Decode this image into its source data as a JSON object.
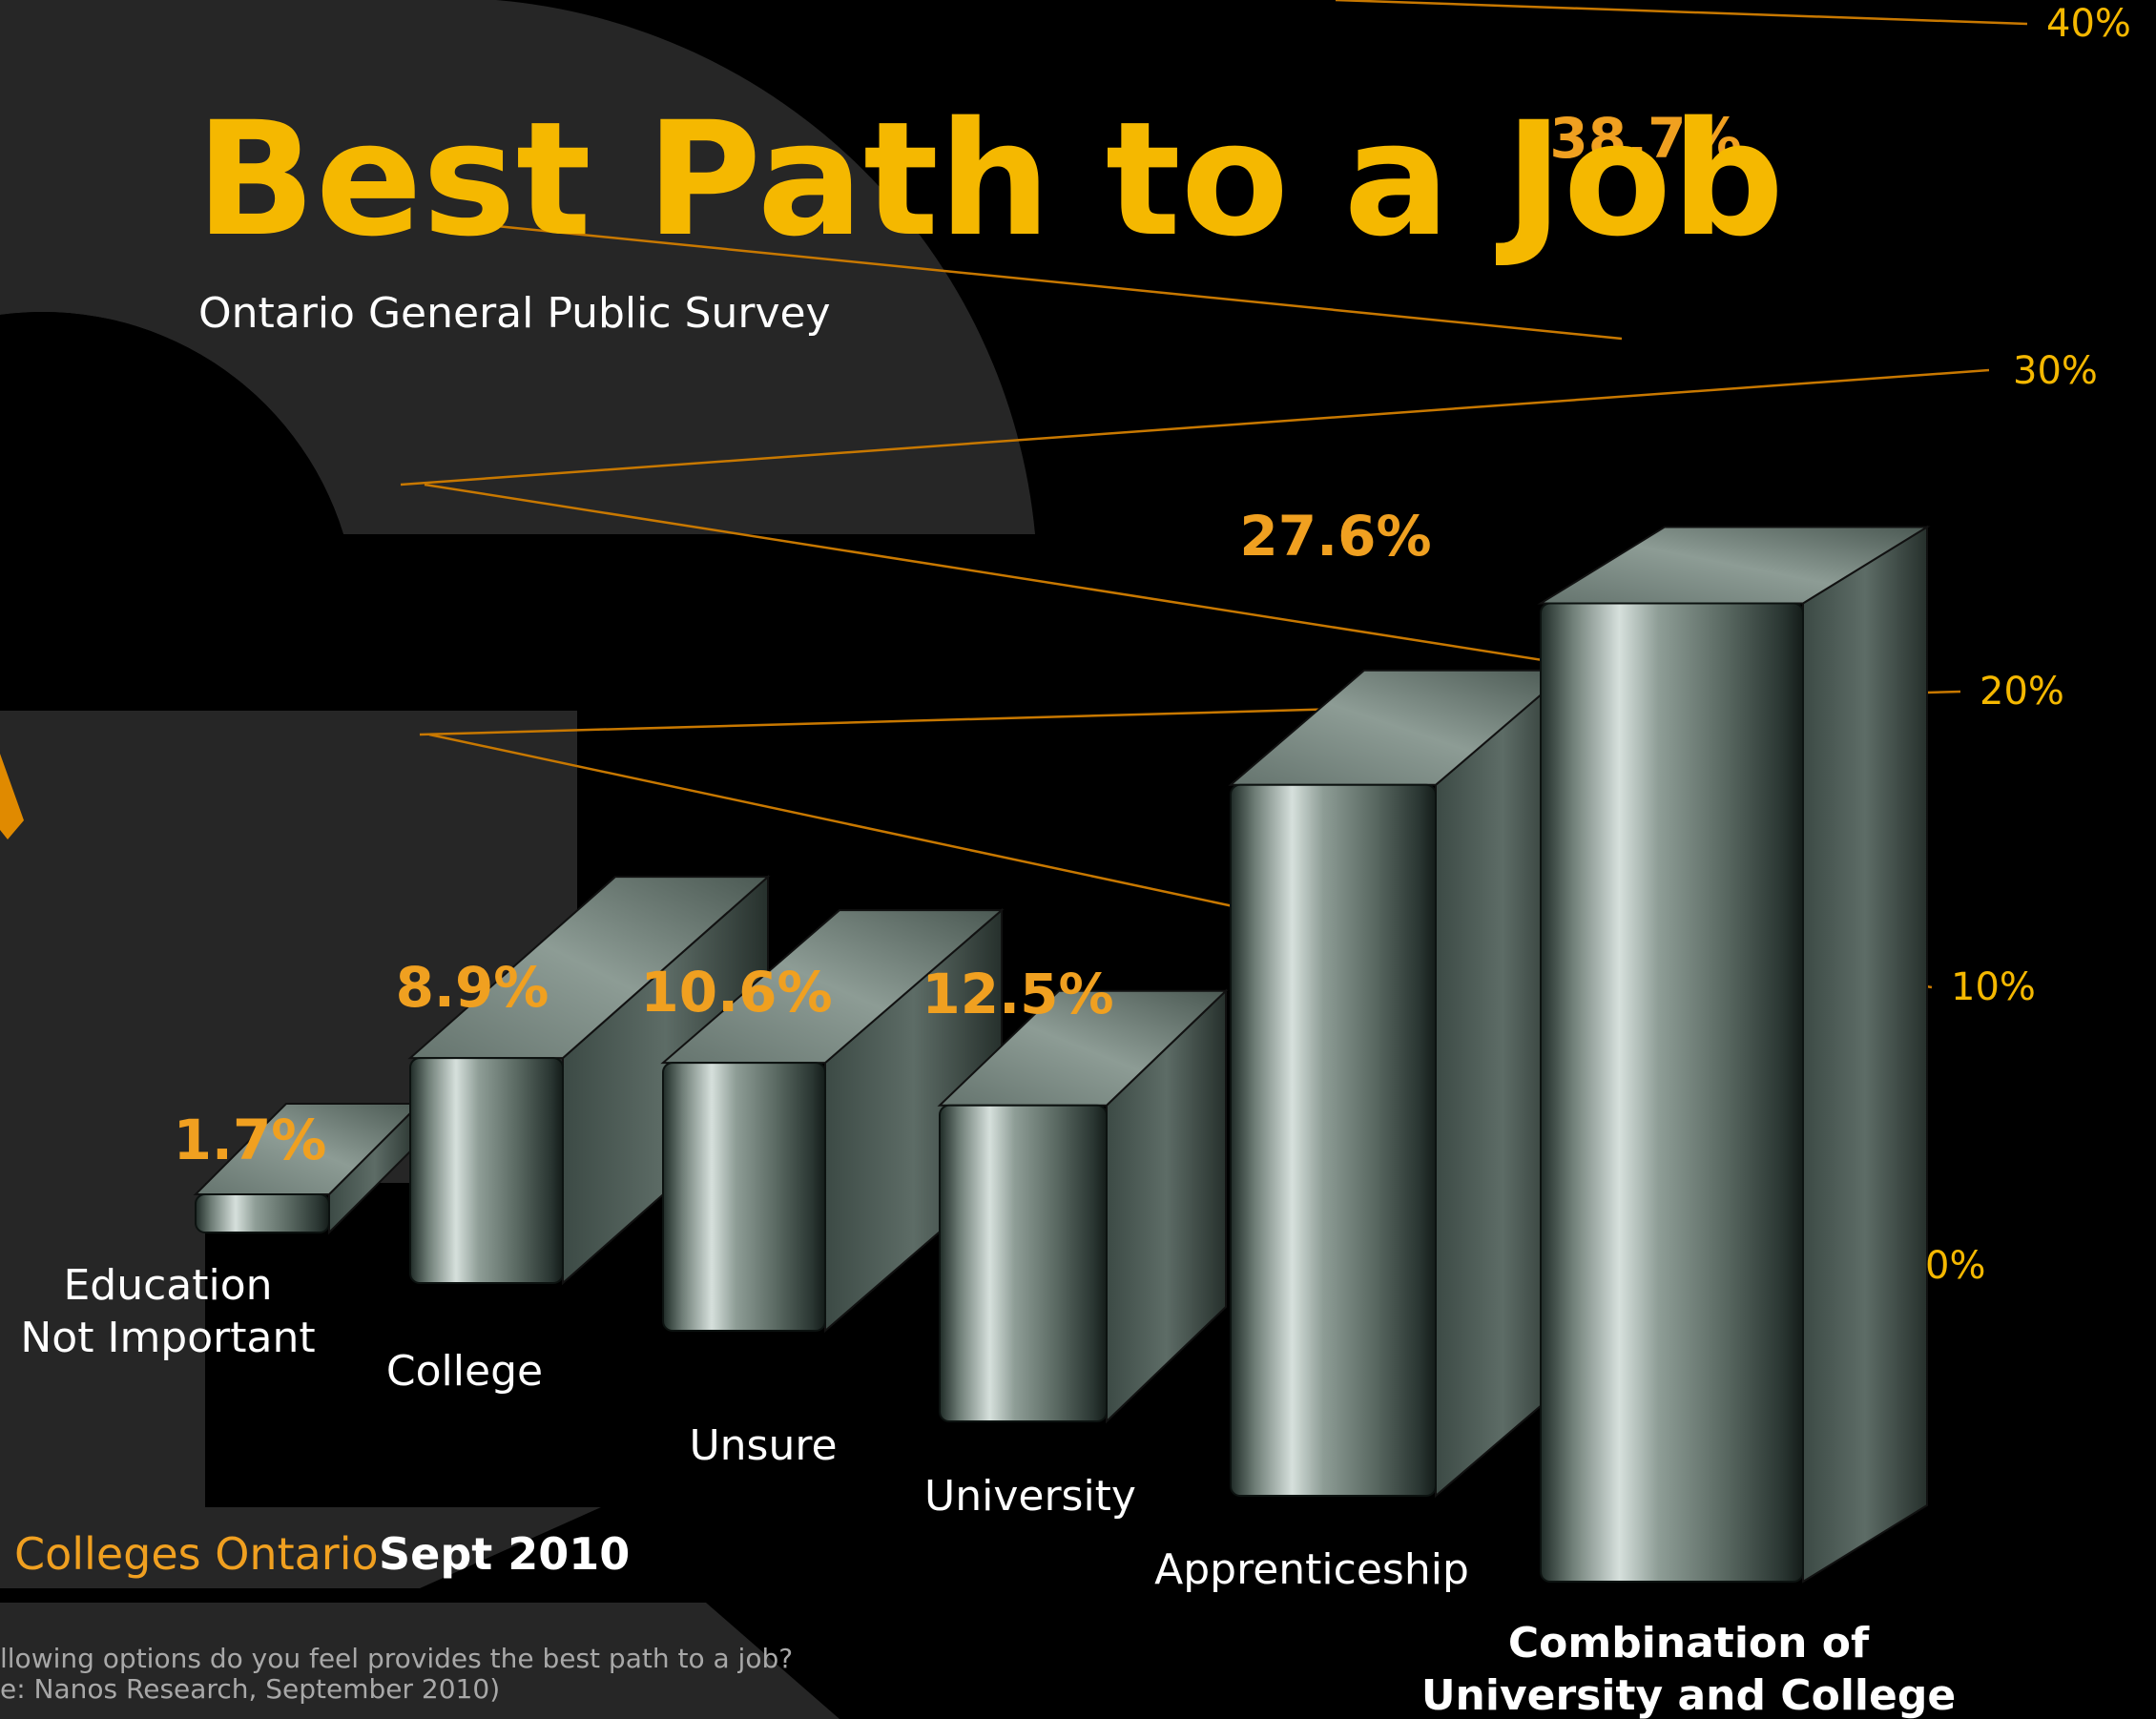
{
  "page": {
    "title": "Best Path to a Job",
    "subtitle": "Ontario General Public Survey",
    "brand": "Colleges Ontario",
    "date": "Sept 2010",
    "note_line1": "llowing options do you feel provides the best path to a job?",
    "note_line2": "e: Nanos Research, September 2010)"
  },
  "colors": {
    "accent": "#f5b800",
    "label_orange": "#f0a020",
    "gridline": "#c87800",
    "background": "#000000",
    "backdrop_logo": "#262626"
  },
  "chart_data": {
    "type": "bar",
    "title": "Best Path to a Job",
    "subtitle": "Ontario General Public Survey",
    "categories": [
      "Education Not Important",
      "College",
      "Unsure",
      "University",
      "Apprenticeship",
      "Combination of University and College"
    ],
    "category_lines": [
      [
        "Education",
        "Not Important"
      ],
      [
        "College"
      ],
      [
        "Unsure"
      ],
      [
        "University"
      ],
      [
        "Apprenticeship"
      ],
      [
        "Combination of",
        "University and College"
      ]
    ],
    "values": [
      1.7,
      8.9,
      10.6,
      12.5,
      27.6,
      38.7
    ],
    "value_labels": [
      "1.7%",
      "8.9%",
      "10.6%",
      "12.5%",
      "27.6%",
      "38.7%"
    ],
    "y_ticks": [
      0,
      10,
      20,
      30,
      40
    ],
    "y_tick_labels": [
      "0%",
      "10%",
      "20%",
      "30%",
      "40%"
    ],
    "ylim": [
      0,
      40
    ],
    "grid": true,
    "style": "3d-metallic-perspective"
  }
}
